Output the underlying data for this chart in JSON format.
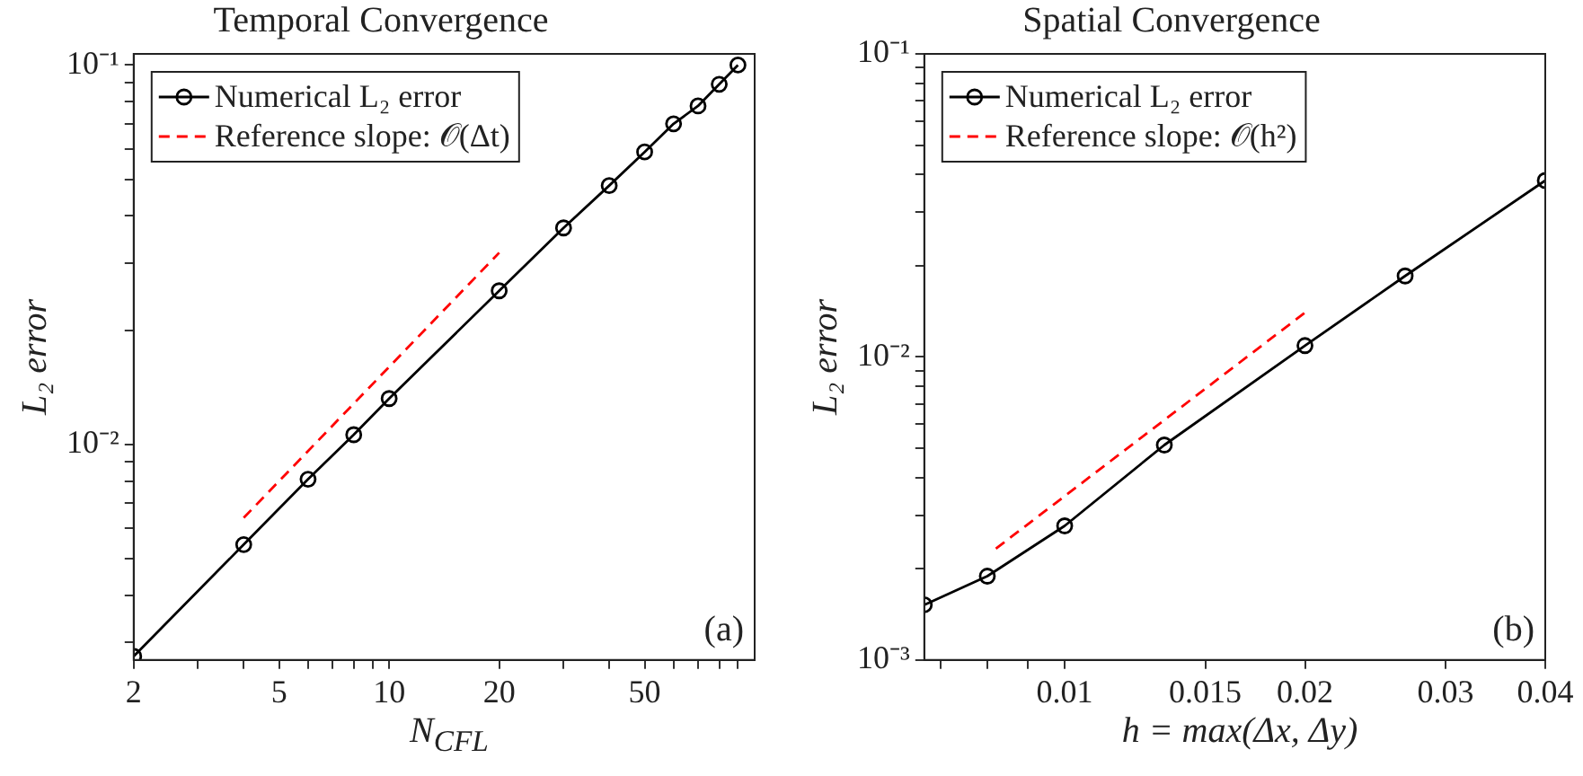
{
  "chart_data": [
    {
      "type": "line",
      "title": "Temporal Convergence",
      "xlabel": "N$_{CFL}$",
      "ylabel": "L₂ error",
      "log": "xy",
      "grid": false,
      "legend": "top left",
      "annotations": [
        "(a)"
      ],
      "xlim": [
        2,
        100
      ],
      "ylim": [
        0.0027,
        0.107
      ],
      "xticks": [
        2,
        {
          "value": 3,
          "label": null
        },
        {
          "value": 4,
          "label": null
        },
        5,
        {
          "value": 6,
          "label": null
        },
        {
          "value": 7,
          "label": null
        },
        {
          "value": 8,
          "label": null
        },
        {
          "value": 9,
          "label": null
        },
        10,
        20,
        {
          "value": 30,
          "label": null
        },
        {
          "value": 40,
          "label": null
        },
        50,
        {
          "value": 60,
          "label": null
        },
        {
          "value": 70,
          "label": null
        },
        {
          "value": 80,
          "label": null
        },
        {
          "value": 90,
          "label": null
        }
      ],
      "yticks": [
        {
          "value": 0.003,
          "label": null
        },
        {
          "value": 0.004,
          "label": null
        },
        {
          "value": 0.005,
          "label": null
        },
        {
          "value": 0.006,
          "label": null
        },
        {
          "value": 0.007,
          "label": null
        },
        {
          "value": 0.008,
          "label": null
        },
        {
          "value": 0.009,
          "label": null
        },
        {
          "value": 0.01,
          "label": "10⁻²"
        },
        {
          "value": 0.02,
          "label": null
        },
        {
          "value": 0.03,
          "label": null
        },
        {
          "value": 0.04,
          "label": null
        },
        {
          "value": 0.05,
          "label": null
        },
        {
          "value": 0.06,
          "label": null
        },
        {
          "value": 0.07,
          "label": null
        },
        {
          "value": 0.08,
          "label": null
        },
        {
          "value": 0.09,
          "label": null
        },
        {
          "value": 0.1,
          "label": "10⁻¹"
        }
      ],
      "series": [
        {
          "name": "Numerical L₂ error",
          "color": "#000000",
          "marker": "circle",
          "line_style": "solid",
          "x": [
            2,
            4,
            6,
            8,
            10,
            20,
            30,
            40,
            50,
            60,
            70,
            80,
            90
          ],
          "values": [
            0.00276,
            0.00544,
            0.00809,
            0.0106,
            0.0132,
            0.0254,
            0.0372,
            0.0481,
            0.059,
            0.07,
            0.078,
            0.089,
            0.1
          ]
        },
        {
          "name": "Reference slope: 𝒪(Δt)",
          "color": "#ff0000",
          "marker": "none",
          "line_style": "dashed",
          "x": [
            4,
            20
          ],
          "values": [
            0.0064,
            0.032
          ]
        }
      ]
    },
    {
      "type": "line",
      "title": "Spatial Convergence",
      "xlabel": "h = max(Δx, Δy)",
      "ylabel": "L₂ error",
      "log": "xy",
      "grid": false,
      "legend": "top left",
      "annotations": [
        "(b)"
      ],
      "xlim": [
        0.00667,
        0.04
      ],
      "ylim": [
        0.001,
        0.1
      ],
      "xticks": [
        {
          "value": 0.007,
          "label": null
        },
        {
          "value": 0.008,
          "label": null
        },
        {
          "value": 0.009,
          "label": null
        },
        0.01,
        0.015,
        0.02,
        0.03,
        0.04
      ],
      "yticks": [
        {
          "value": 0.001,
          "label": "10⁻³"
        },
        {
          "value": 0.002,
          "label": null
        },
        {
          "value": 0.003,
          "label": null
        },
        {
          "value": 0.004,
          "label": null
        },
        {
          "value": 0.005,
          "label": null
        },
        {
          "value": 0.006,
          "label": null
        },
        {
          "value": 0.007,
          "label": null
        },
        {
          "value": 0.008,
          "label": null
        },
        {
          "value": 0.009,
          "label": null
        },
        {
          "value": 0.01,
          "label": "10⁻²"
        },
        {
          "value": 0.02,
          "label": null
        },
        {
          "value": 0.03,
          "label": null
        },
        {
          "value": 0.04,
          "label": null
        },
        {
          "value": 0.05,
          "label": null
        },
        {
          "value": 0.06,
          "label": null
        },
        {
          "value": 0.07,
          "label": null
        },
        {
          "value": 0.08,
          "label": null
        },
        {
          "value": 0.09,
          "label": null
        },
        {
          "value": 0.1,
          "label": "10⁻¹"
        }
      ],
      "series": [
        {
          "name": "Numerical L₂ error",
          "color": "#000000",
          "marker": "circle",
          "line_style": "solid",
          "x": [
            0.00667,
            0.008,
            0.01,
            0.01333,
            0.02,
            0.0267,
            0.04
          ],
          "values": [
            0.00152,
            0.00189,
            0.00277,
            0.00512,
            0.0109,
            0.0185,
            0.0382
          ]
        },
        {
          "name": "Reference slope: 𝒪(h²)",
          "color": "#ff0000",
          "marker": "none",
          "line_style": "dashed",
          "x": [
            0.0082,
            0.02
          ],
          "values": [
            0.00233,
            0.014
          ]
        }
      ]
    }
  ]
}
